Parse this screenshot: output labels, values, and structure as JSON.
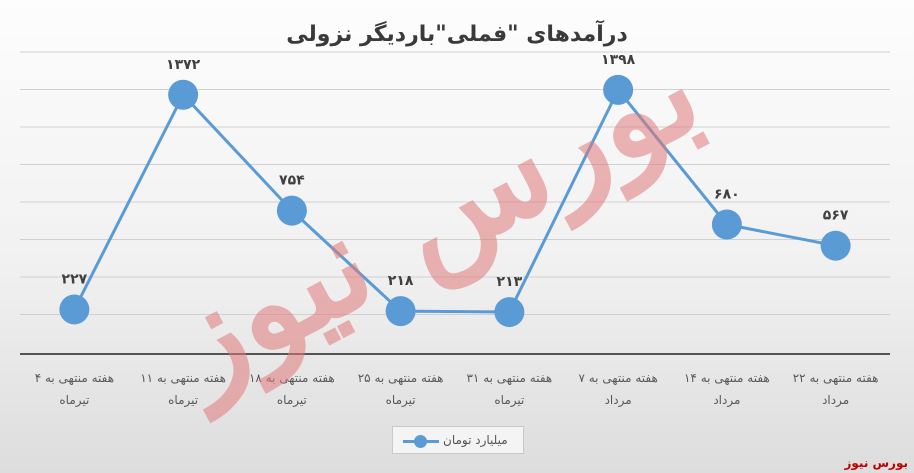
{
  "chart_data": {
    "type": "line",
    "title": "درآمدهای \"فملی\"باردیگر نزولی",
    "categories": [
      [
        "هفته منتهی به ۴",
        "تیرماه"
      ],
      [
        "هفته منتهی به ۱۱",
        "تیرماه"
      ],
      [
        "هفته منتهی به ۱۸",
        "تیرماه"
      ],
      [
        "هفته منتهی به ۲۵",
        "تیرماه"
      ],
      [
        "هفته منتهی به ۳۱",
        "تیرماه"
      ],
      [
        "هفته منتهی به ۷",
        "مرداد"
      ],
      [
        "هفته منتهی به ۱۴",
        "مرداد"
      ],
      [
        "هفته منتهی به ۲۲",
        "مرداد"
      ]
    ],
    "series": [
      {
        "name": "میلیارد تومان",
        "values": [
          227,
          1372,
          754,
          218,
          213,
          1398,
          680,
          567
        ],
        "labels": [
          "۲۲۷",
          "۱۳۷۲",
          "۷۵۴",
          "۲۱۸",
          "۲۱۳",
          "۱۳۹۸",
          "۶۸۰",
          "۵۶۷"
        ]
      }
    ],
    "ylim": [
      0,
      1600
    ],
    "grid": true,
    "legend": "bottom",
    "colors": {
      "line": "#5b9bd5",
      "watermark": "#e07a7a",
      "brand": "#c00000"
    }
  },
  "watermark": "بورس نیوز",
  "brand": "بورس نیوز"
}
